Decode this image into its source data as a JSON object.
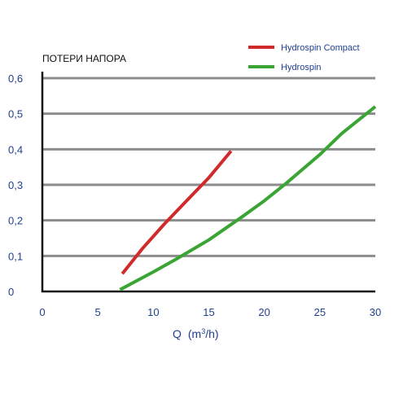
{
  "chart_data": {
    "type": "line",
    "ylabel": "ПОТЕРИ НАПОРА",
    "xlabel_main": "Q",
    "xlabel_unit_pre": "(m",
    "xlabel_unit_sup": "3",
    "xlabel_unit_post": "/h)",
    "xlim": [
      0,
      30
    ],
    "ylim": [
      0,
      0.6
    ],
    "x_ticks": [
      {
        "value": 0,
        "label": "0"
      },
      {
        "value": 5,
        "label": "5"
      },
      {
        "value": 10,
        "label": "10"
      },
      {
        "value": 15,
        "label": "15"
      },
      {
        "value": 20,
        "label": "20"
      },
      {
        "value": 25,
        "label": "25"
      },
      {
        "value": 30,
        "label": "30"
      }
    ],
    "y_ticks": [
      {
        "value": 0,
        "label": "0"
      },
      {
        "value": 0.1,
        "label": "0,1"
      },
      {
        "value": 0.2,
        "label": "0,2"
      },
      {
        "value": 0.3,
        "label": "0,3"
      },
      {
        "value": 0.4,
        "label": "0,4"
      },
      {
        "value": 0.5,
        "label": "0,5"
      },
      {
        "value": 0.6,
        "label": "0,6"
      }
    ],
    "grid": true,
    "legend_position": "top-right",
    "colors": {
      "axis": "#111111",
      "grid": "#8c8c8c",
      "tick_text": "#1f3f8f"
    },
    "series": [
      {
        "name": "Hydrospin Compact",
        "color": "#d12a2a",
        "x": [
          7.2,
          9,
          11,
          13,
          15,
          17
        ],
        "y": [
          0.05,
          0.12,
          0.19,
          0.255,
          0.32,
          0.395
        ]
      },
      {
        "name": "Hydrospin",
        "color": "#3aa535",
        "x": [
          7,
          10,
          12,
          15,
          18,
          20,
          22,
          25,
          27,
          30
        ],
        "y": [
          0.005,
          0.055,
          0.09,
          0.145,
          0.21,
          0.255,
          0.305,
          0.385,
          0.445,
          0.52
        ]
      }
    ]
  }
}
